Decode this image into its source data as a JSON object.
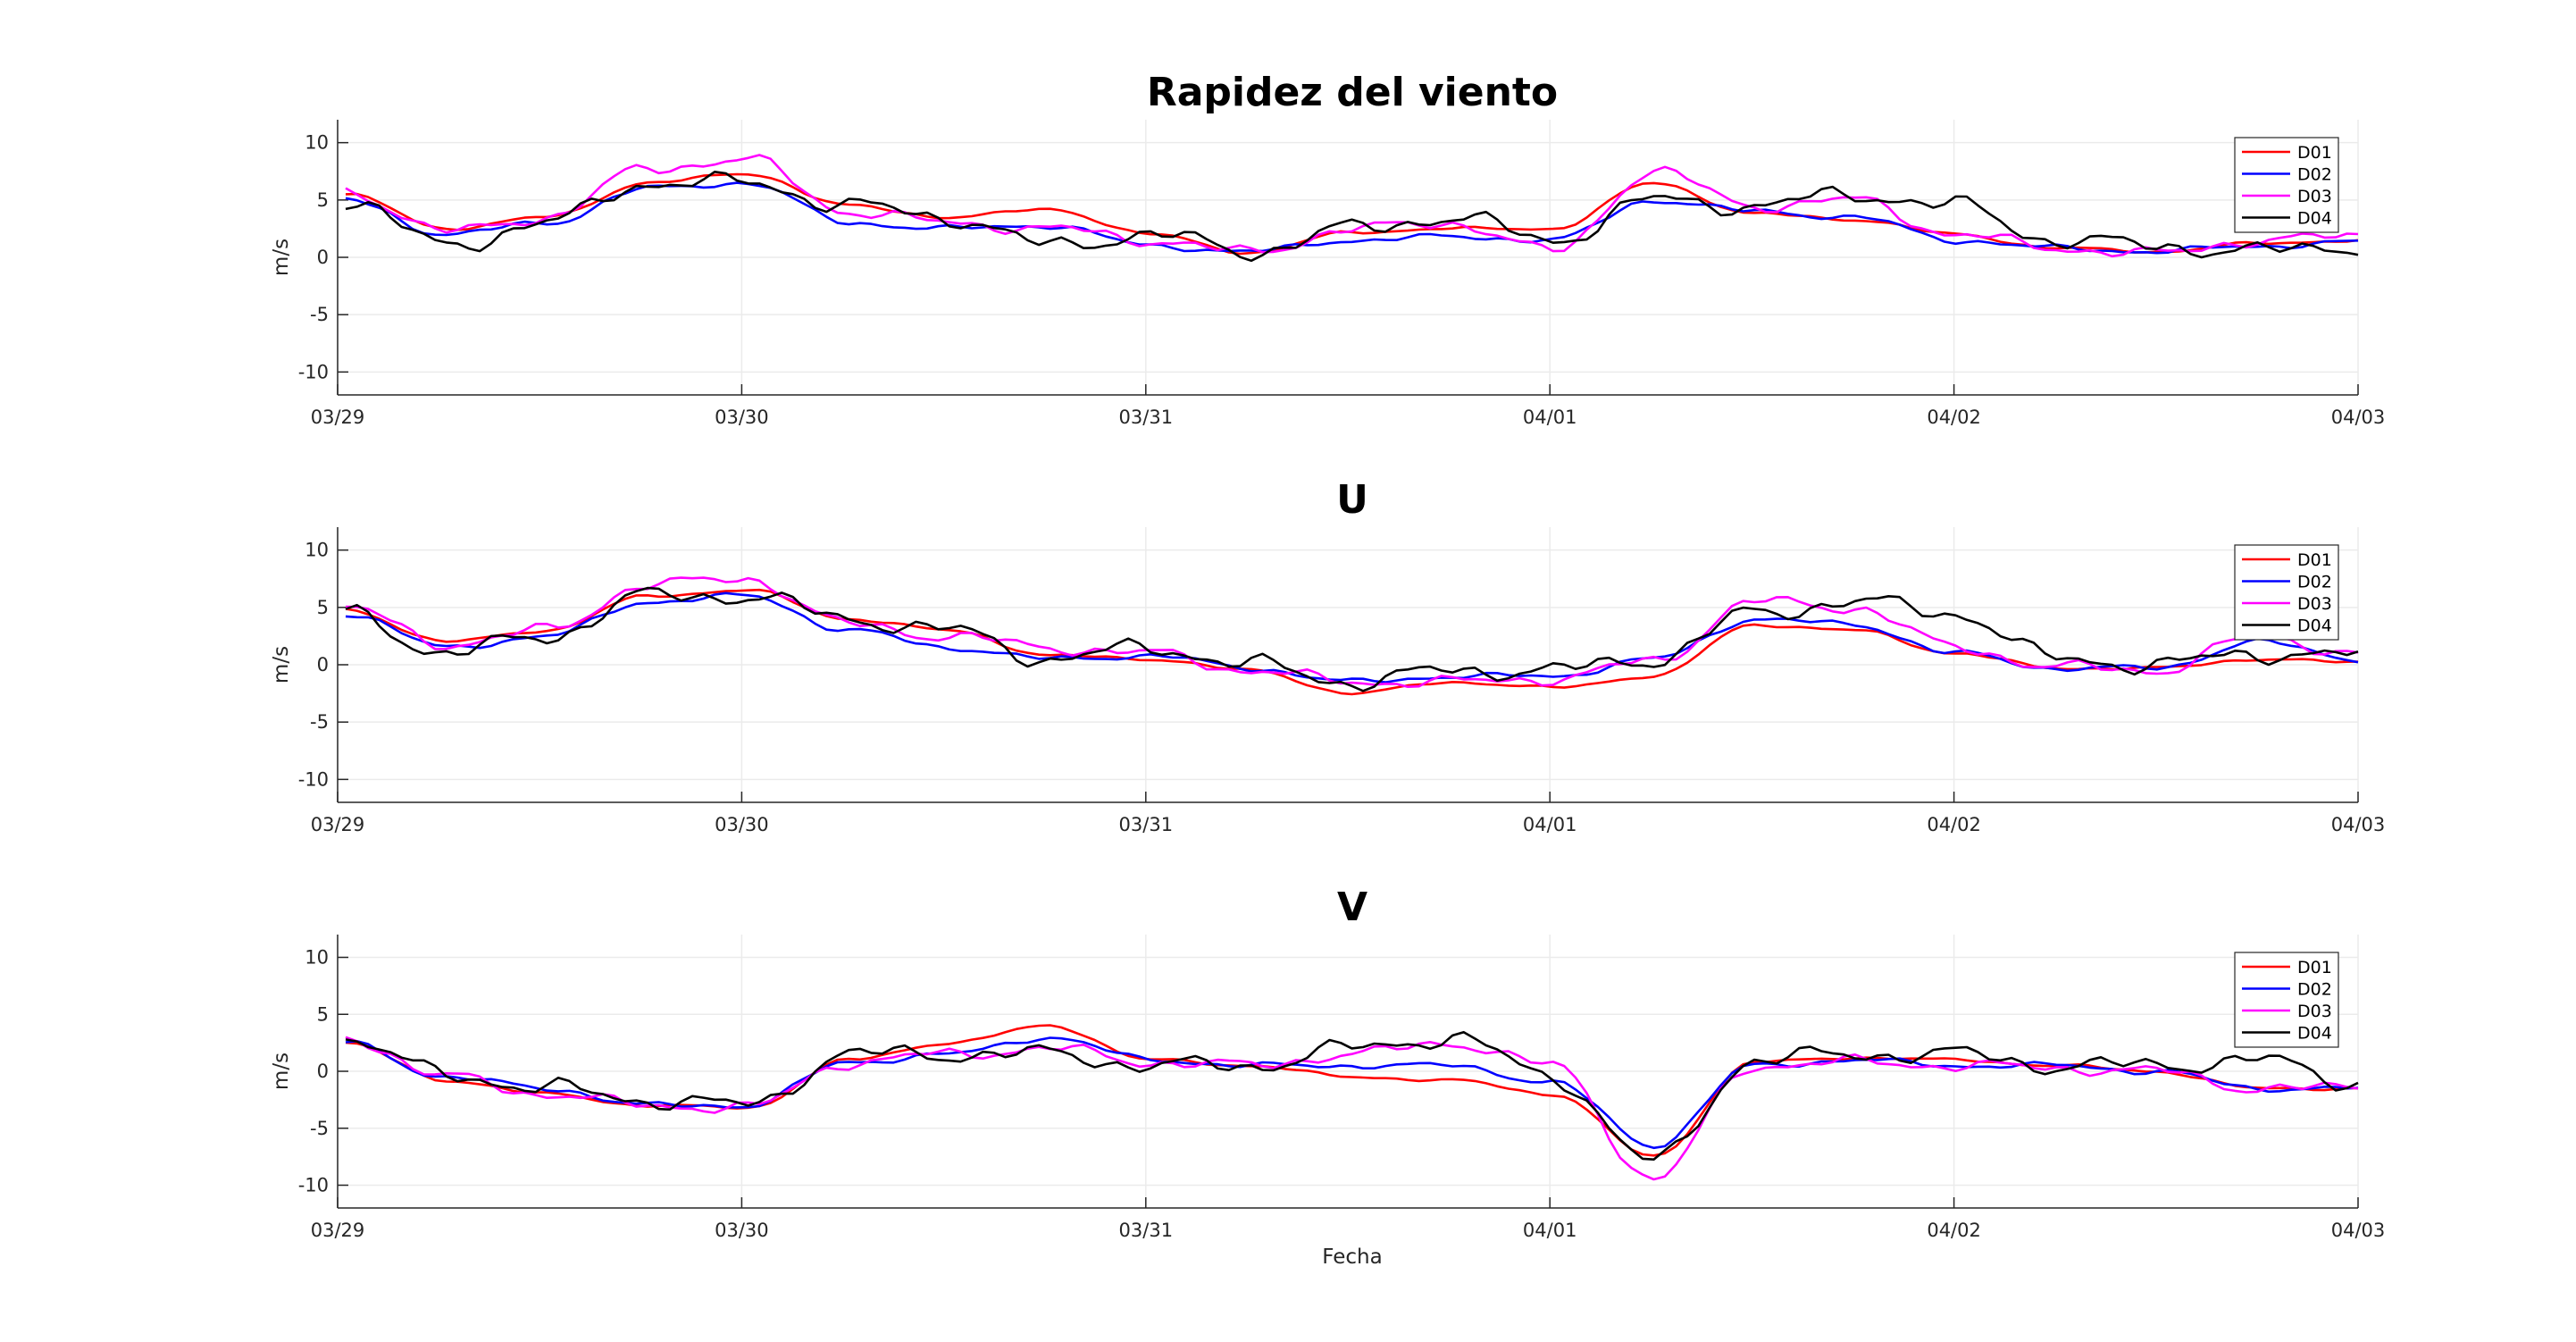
{
  "chart_data": [
    {
      "type": "line",
      "title": "Rapidez del viento",
      "xlabel": "",
      "ylabel": "m/s",
      "x_axis": "fecha",
      "x": [
        "03/29",
        "03/29 06h",
        "03/29 12h",
        "03/29 18h",
        "03/30",
        "03/30 06h",
        "03/30 12h",
        "03/30 18h",
        "03/31",
        "03/31 06h",
        "03/31 12h",
        "03/31 18h",
        "04/01",
        "04/01 06h",
        "04/01 12h",
        "04/01 18h",
        "04/02",
        "04/02 06h",
        "04/02 12h",
        "04/02 18h",
        "04/03"
      ],
      "xticks": [
        "03/29",
        "03/30",
        "03/31",
        "04/01",
        "04/02",
        "04/03"
      ],
      "yticks": [
        "10",
        "5",
        "0",
        "-5",
        "-10"
      ],
      "ylim": [
        -12,
        12
      ],
      "grid": true,
      "legend_position": "top-right",
      "series": [
        {
          "name": "D01",
          "color": "#ff0000",
          "values": [
            5.5,
            2.5,
            3.5,
            6.5,
            7.3,
            4.5,
            3.5,
            4.2,
            2.0,
            0.4,
            2.2,
            2.5,
            2.5,
            6.5,
            3.8,
            3.3,
            2.0,
            0.8,
            0.5,
            1.2,
            1.5
          ]
        },
        {
          "name": "D02",
          "color": "#0000ff",
          "values": [
            5.0,
            2.0,
            3.0,
            6.0,
            6.5,
            3.0,
            2.5,
            2.8,
            1.0,
            0.5,
            1.5,
            1.8,
            1.5,
            5.0,
            4.0,
            3.5,
            1.5,
            0.8,
            0.5,
            1.0,
            1.3
          ]
        },
        {
          "name": "D03",
          "color": "#ff00ff",
          "values": [
            5.8,
            2.2,
            3.5,
            7.8,
            8.5,
            4.0,
            3.0,
            2.5,
            1.5,
            0.4,
            2.5,
            3.0,
            0.5,
            7.5,
            4.5,
            5.0,
            2.0,
            0.8,
            0.3,
            1.5,
            1.8
          ]
        },
        {
          "name": "D04",
          "color": "#000000",
          "values": [
            5.0,
            1.0,
            3.0,
            6.5,
            6.5,
            4.5,
            3.5,
            1.0,
            2.0,
            0.5,
            2.5,
            3.5,
            1.5,
            5.0,
            4.5,
            5.5,
            4.5,
            1.5,
            1.0,
            0.5,
            1.0
          ]
        }
      ]
    },
    {
      "type": "line",
      "title": "U",
      "xlabel": "",
      "ylabel": "m/s",
      "x": [
        "03/29",
        "03/29 06h",
        "03/29 12h",
        "03/29 18h",
        "03/30",
        "03/30 06h",
        "03/30 12h",
        "03/30 18h",
        "03/31",
        "03/31 06h",
        "03/31 12h",
        "03/31 18h",
        "04/01",
        "04/01 06h",
        "04/01 12h",
        "04/01 18h",
        "04/02",
        "04/02 06h",
        "04/02 12h",
        "04/02 18h",
        "04/03"
      ],
      "xticks": [
        "03/29",
        "03/30",
        "03/31",
        "04/01",
        "04/02",
        "04/03"
      ],
      "yticks": [
        "10",
        "5",
        "0",
        "-5",
        "-10"
      ],
      "ylim": [
        -12,
        12
      ],
      "grid": true,
      "legend_position": "top-right",
      "series": [
        {
          "name": "D01",
          "color": "#ff0000",
          "values": [
            4.8,
            2.0,
            3.0,
            6.0,
            6.5,
            4.0,
            3.0,
            0.8,
            0.5,
            -0.5,
            -2.5,
            -1.5,
            -2.0,
            -1.0,
            3.5,
            3.0,
            1.0,
            -0.3,
            -0.3,
            0.5,
            0.2
          ]
        },
        {
          "name": "D02",
          "color": "#0000ff",
          "values": [
            4.5,
            1.5,
            2.5,
            5.5,
            6.0,
            3.0,
            1.5,
            0.5,
            0.8,
            -0.3,
            -1.5,
            -1.0,
            -1.0,
            0.5,
            4.0,
            3.5,
            1.0,
            -0.3,
            -0.3,
            2.0,
            0.5
          ]
        },
        {
          "name": "D03",
          "color": "#ff00ff",
          "values": [
            5.0,
            1.8,
            3.0,
            7.0,
            7.5,
            3.5,
            2.5,
            1.5,
            1.0,
            -0.5,
            -1.5,
            -1.5,
            -1.2,
            0.3,
            5.5,
            5.0,
            1.5,
            -0.2,
            -0.5,
            2.5,
            1.0
          ]
        },
        {
          "name": "D04",
          "color": "#000000",
          "values": [
            4.5,
            1.0,
            2.5,
            6.0,
            6.0,
            4.0,
            3.0,
            0.5,
            1.5,
            0.0,
            -1.5,
            -0.5,
            -0.5,
            0.5,
            4.5,
            5.5,
            4.5,
            0.5,
            0.0,
            1.0,
            0.8
          ]
        }
      ]
    },
    {
      "type": "line",
      "title": "V",
      "xlabel": "Fecha",
      "ylabel": "m/s",
      "x": [
        "03/29",
        "03/29 06h",
        "03/29 12h",
        "03/29 18h",
        "03/30",
        "03/30 06h",
        "03/30 12h",
        "03/30 18h",
        "03/31",
        "03/31 06h",
        "03/31 12h",
        "03/31 18h",
        "04/01",
        "04/01 06h",
        "04/01 12h",
        "04/01 18h",
        "04/02",
        "04/02 06h",
        "04/02 12h",
        "04/02 18h",
        "04/03"
      ],
      "xticks": [
        "03/29",
        "03/30",
        "03/31",
        "04/01",
        "04/02",
        "04/03"
      ],
      "yticks": [
        "10",
        "5",
        "0",
        "-5",
        "-10"
      ],
      "ylim": [
        -12,
        12
      ],
      "grid": true,
      "legend_position": "top-right",
      "series": [
        {
          "name": "D01",
          "color": "#ff0000",
          "values": [
            2.5,
            -0.8,
            -2.0,
            -3.0,
            -3.2,
            1.0,
            2.5,
            4.0,
            1.0,
            0.5,
            -0.5,
            -0.8,
            -2.0,
            -7.5,
            0.8,
            1.2,
            1.0,
            0.5,
            0.0,
            -1.5,
            -1.5
          ]
        },
        {
          "name": "D02",
          "color": "#0000ff",
          "values": [
            2.5,
            -0.5,
            -1.5,
            -3.0,
            -3.0,
            0.8,
            1.5,
            3.0,
            1.0,
            0.5,
            0.5,
            0.5,
            -1.0,
            -6.5,
            0.5,
            1.0,
            0.5,
            0.5,
            0.0,
            -1.5,
            -1.5
          ]
        },
        {
          "name": "D03",
          "color": "#ff00ff",
          "values": [
            3.0,
            -0.5,
            -2.0,
            -3.0,
            -3.2,
            0.8,
            1.5,
            2.0,
            0.8,
            0.5,
            1.5,
            2.5,
            0.5,
            -9.5,
            0.5,
            0.8,
            0.5,
            0.3,
            0.0,
            -1.5,
            -1.5
          ]
        },
        {
          "name": "D04",
          "color": "#000000",
          "values": [
            2.8,
            -0.3,
            -1.5,
            -2.5,
            -3.0,
            1.5,
            1.5,
            1.5,
            0.5,
            0.5,
            2.0,
            3.0,
            -0.5,
            -8.0,
            1.0,
            1.5,
            1.5,
            0.5,
            0.5,
            1.0,
            -1.0
          ]
        }
      ]
    }
  ]
}
